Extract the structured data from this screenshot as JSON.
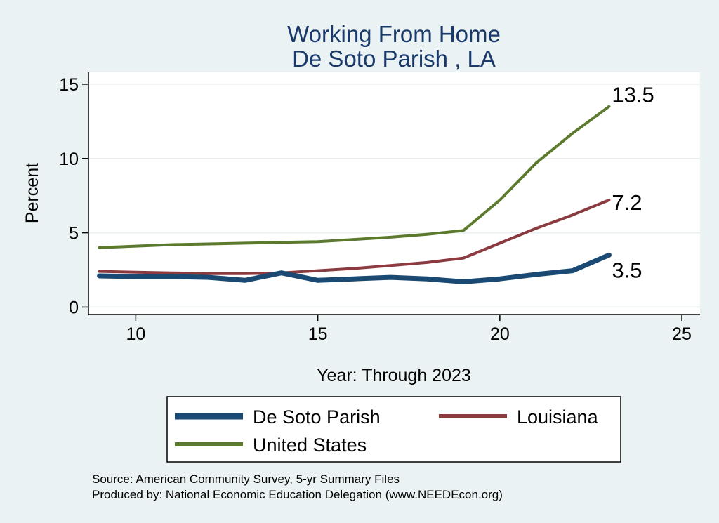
{
  "chart_data": {
    "type": "line",
    "title": "Working From Home",
    "subtitle": "De Soto Parish , LA",
    "xlabel": "Year: Through 2023",
    "ylabel": "Percent",
    "xlim": [
      8.7,
      25.5
    ],
    "ylim": [
      -0.5,
      15.8
    ],
    "xticks": [
      10,
      15,
      20,
      25
    ],
    "yticks": [
      0,
      5,
      10,
      15
    ],
    "grid": true,
    "legend_position": "bottom",
    "series": [
      {
        "name": "De Soto Parish",
        "color": "#1a4a73",
        "x": [
          9,
          10,
          11,
          12,
          13,
          14,
          15,
          16,
          17,
          18,
          19,
          20,
          21,
          22,
          23
        ],
        "y": [
          2.1,
          2.05,
          2.05,
          2.0,
          1.8,
          2.3,
          1.8,
          1.9,
          2.0,
          1.9,
          1.7,
          1.9,
          2.2,
          2.45,
          3.5
        ],
        "end_label": "3.5"
      },
      {
        "name": "Louisiana",
        "color": "#8b3a3f",
        "x": [
          9,
          10,
          11,
          12,
          13,
          14,
          15,
          16,
          17,
          18,
          19,
          20,
          21,
          22,
          23
        ],
        "y": [
          2.4,
          2.35,
          2.3,
          2.25,
          2.25,
          2.3,
          2.45,
          2.6,
          2.8,
          3.0,
          3.3,
          4.3,
          5.3,
          6.2,
          7.2
        ],
        "end_label": "7.2"
      },
      {
        "name": "United States",
        "color": "#5b7a2e",
        "x": [
          9,
          10,
          11,
          12,
          13,
          14,
          15,
          16,
          17,
          18,
          19,
          20,
          21,
          22,
          23
        ],
        "y": [
          4.0,
          4.1,
          4.2,
          4.25,
          4.3,
          4.35,
          4.4,
          4.55,
          4.7,
          4.9,
          5.15,
          7.2,
          9.7,
          11.7,
          13.5
        ],
        "end_label": "13.5"
      }
    ]
  },
  "source_lines": [
    "Source: American Community Survey, 5-yr Summary Files",
    "Produced by: National Economic Education Delegation (www.NEEDEcon.org)"
  ]
}
